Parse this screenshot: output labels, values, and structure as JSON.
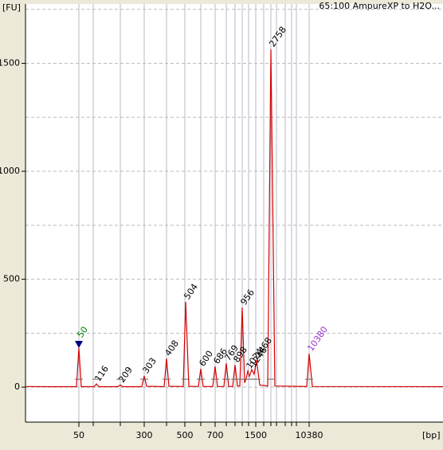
{
  "chart_data": {
    "type": "line",
    "title": "65:100 AmpureXP to H2O...",
    "y_label": "[FU]",
    "x_label": "[bp]",
    "color": "#d40000",
    "xlim": [
      0,
      524
    ],
    "ylim": [
      -162,
      1775
    ],
    "yticks": [
      0,
      500,
      1000,
      1500
    ],
    "yminor": [
      250,
      750,
      1250,
      1750
    ],
    "xticks": [
      {
        "value": 67,
        "label": "50"
      },
      {
        "value": 149,
        "label": "300"
      },
      {
        "value": 200,
        "label": "500"
      },
      {
        "value": 238,
        "label": "700"
      },
      {
        "value": 289,
        "label": "1500"
      },
      {
        "value": 356,
        "label": "10380"
      }
    ],
    "xgrid": [
      67,
      85,
      119,
      149,
      177,
      200,
      220,
      238,
      252,
      263,
      272,
      280,
      289,
      299,
      308,
      315,
      326,
      334,
      340,
      356
    ],
    "grid": true,
    "x": [
      0,
      28,
      64,
      67,
      70,
      86,
      89,
      92,
      116,
      119,
      122,
      146,
      149,
      152,
      174,
      177,
      180,
      198,
      201,
      205,
      217,
      220,
      223,
      235,
      238,
      241,
      249,
      252,
      255,
      260,
      263,
      266,
      269,
      272,
      275,
      277,
      279,
      281,
      284,
      287,
      290,
      294,
      304,
      308,
      313,
      353,
      356,
      360,
      524
    ],
    "y": [
      3,
      2,
      2,
      181,
      2,
      2,
      15,
      2,
      2,
      10,
      2,
      2,
      52,
      4,
      2,
      133,
      4,
      3,
      395,
      4,
      3,
      85,
      3,
      3,
      96,
      3,
      3,
      111,
      3,
      3,
      103,
      5,
      5,
      369,
      20,
      40,
      74,
      50,
      81,
      60,
      125,
      10,
      5,
      1565,
      5,
      3,
      155,
      3,
      2
    ],
    "peaks": [
      {
        "label": "50",
        "x": 67,
        "y": 181,
        "color": "#008000"
      },
      {
        "label": "116",
        "x": 89,
        "y": 15
      },
      {
        "label": "209",
        "x": 119,
        "y": 10
      },
      {
        "label": "303",
        "x": 149,
        "y": 52
      },
      {
        "label": "408",
        "x": 177,
        "y": 133
      },
      {
        "label": "504",
        "x": 201,
        "y": 395
      },
      {
        "label": "600",
        "x": 220,
        "y": 85
      },
      {
        "label": "686",
        "x": 238,
        "y": 96
      },
      {
        "label": "769",
        "x": 252,
        "y": 111
      },
      {
        "label": "898",
        "x": 263,
        "y": 103
      },
      {
        "label": "956",
        "x": 272,
        "y": 369
      },
      {
        "label": "1024",
        "x": 279,
        "y": 74
      },
      {
        "label": "1246",
        "x": 284,
        "y": 81
      },
      {
        "label": "1468",
        "x": 290,
        "y": 125
      },
      {
        "label": "2758",
        "x": 308,
        "y": 1565
      },
      {
        "label": "10380",
        "x": 356,
        "y": 155,
        "color": "#9933cc"
      }
    ]
  }
}
